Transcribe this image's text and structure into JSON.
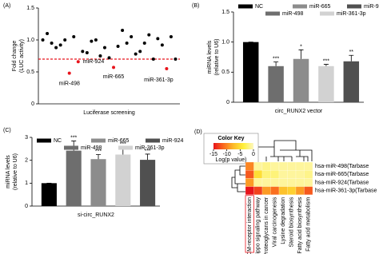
{
  "chart_data": [
    {
      "type": "scatter",
      "panel_label": "(A)",
      "ylabel": [
        "Fold change",
        "(LUC activity)"
      ],
      "xlabel": "Luciferase screening",
      "xlim": [
        0,
        32
      ],
      "ylim": [
        0,
        1.5
      ],
      "yticks": [
        0,
        0.5,
        {
          "value": 1,
          "label": "1.0"
        },
        1.5
      ],
      "series": [
        {
          "color": "#000000",
          "x": [
            1,
            2,
            3,
            4,
            5,
            6,
            8,
            10,
            11,
            12,
            13,
            14,
            15,
            16,
            18,
            19,
            20,
            21,
            22,
            23,
            24,
            25,
            26,
            27,
            28,
            30,
            31
          ],
          "values": [
            1.0,
            1.1,
            0.95,
            0.88,
            0.92,
            1.0,
            1.05,
            0.82,
            0.8,
            0.98,
            1.0,
            0.75,
            0.88,
            0.72,
            0.9,
            1.15,
            0.95,
            1.05,
            0.78,
            0.82,
            0.95,
            1.08,
            0.7,
            1.02,
            0.92,
            1.05,
            0.7
          ]
        },
        {
          "color": "#e8141c",
          "x": [
            7,
            9,
            17,
            29
          ],
          "values": [
            0.48,
            0.66,
            0.57,
            0.55
          ],
          "point_labels": [
            "miR-498",
            "miR-924",
            "miR-665",
            "miR-361-3p"
          ]
        }
      ],
      "threshold": 0.7,
      "threshold_color": "#e8141c"
    },
    {
      "type": "bar",
      "panel_label": "(B)",
      "ylabel": [
        "miRNA levels",
        "(relative to U6)"
      ],
      "xlabel": "circ_RUNX2 vector",
      "categories": [
        "NC",
        "miR-498",
        "miR-665",
        "miR-361-3p",
        "miR-924"
      ],
      "colors": [
        "#000000",
        "#6e6e6e",
        "#8c8c8c",
        "#d2d2d2",
        "#505050"
      ],
      "values": [
        1.0,
        0.6,
        0.72,
        0.6,
        0.68
      ],
      "errors": [
        0,
        0.07,
        0.15,
        0.03,
        0.1
      ],
      "sig_labels": [
        null,
        "***",
        "*",
        "***",
        "**"
      ],
      "ylim": [
        0,
        1.5
      ],
      "yticks": [
        0,
        0.5,
        {
          "value": 1,
          "label": "1.0"
        },
        1.5
      ]
    },
    {
      "type": "bar",
      "panel_label": "(C)",
      "ylabel": [
        "miRNA levels",
        "(relative to U6)"
      ],
      "xlabel": "si-circ_RUNX2",
      "categories": [
        "NC",
        "miR-498",
        "miR-665",
        "miR-361-3p",
        "miR-924"
      ],
      "colors": [
        "#000000",
        "#6e6e6e",
        "#8c8c8c",
        "#d2d2d2",
        "#505050"
      ],
      "values": [
        1.0,
        2.42,
        2.05,
        2.25,
        2.02
      ],
      "errors": [
        0,
        0.42,
        0.2,
        0.3,
        0.25
      ],
      "sig_labels": [
        null,
        "***",
        "***",
        "***",
        "***"
      ],
      "ylim": [
        0,
        3
      ],
      "yticks": [
        0,
        1,
        2,
        3
      ]
    },
    {
      "type": "heatmap",
      "panel_label": "(D)",
      "rows": [
        "hsa-miR-498(Tarbase",
        "hsa-miR-665(Tarbase",
        "hsa-miR-924(Tarbase",
        "hsa-miR-361-3p(Tarbase"
      ],
      "columns": [
        "ECM-receptor interaction",
        "Hippo signaling pathway",
        "Proteoglycans in cancer",
        "Viral carcinogenesis",
        "Lysine degradation",
        "Steroid biosynthesis",
        "Fatty acid biosynthesis",
        "Fatty acid metabolism"
      ],
      "values": [
        [
          -10,
          -1,
          -1.5,
          -1,
          -1,
          -1,
          -1,
          -1
        ],
        [
          -12,
          -5,
          -2,
          -2,
          -1,
          -1,
          -1,
          -1.5
        ],
        [
          -9,
          -1,
          -1,
          -1,
          -1,
          -1,
          -1,
          -1
        ],
        [
          -15,
          -13,
          -9,
          -11,
          -7,
          -6,
          -9,
          -12
        ]
      ],
      "colorbar": {
        "title": "Color Key",
        "label": "Log(p value)",
        "lim": [
          -15,
          0
        ],
        "ticks": [
          -15,
          -10,
          -5,
          0
        ],
        "colors": [
          "#e8141c",
          "#fa6a1e",
          "#fdbb2a",
          "#fff03a",
          "#fdf7c0"
        ]
      }
    }
  ]
}
